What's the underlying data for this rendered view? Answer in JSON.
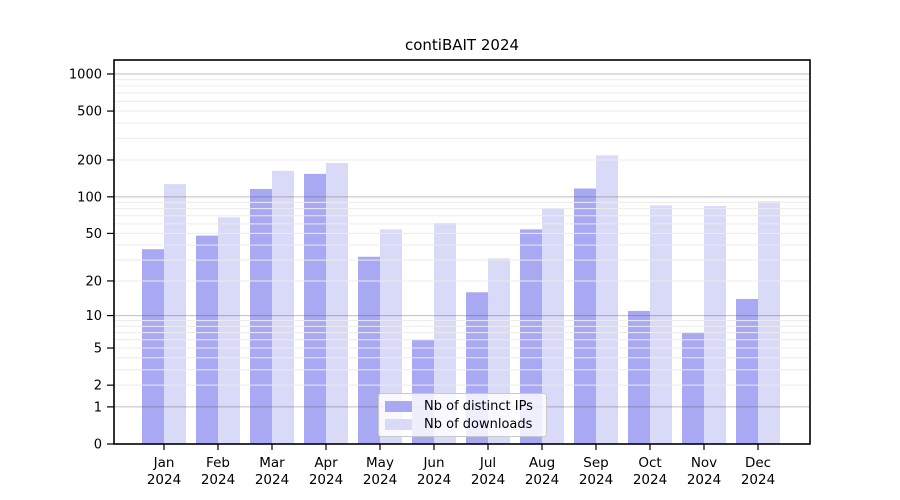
{
  "chart_data": {
    "type": "bar",
    "title": "contiBAIT 2024",
    "categories": [
      "Jan",
      "Feb",
      "Mar",
      "Apr",
      "May",
      "Jun",
      "Jul",
      "Aug",
      "Sep",
      "Oct",
      "Nov",
      "Dec"
    ],
    "year_label": "2024",
    "series": [
      {
        "name": "Nb of distinct IPs",
        "color": "#a9a9f3",
        "values": [
          37,
          48,
          116,
          154,
          32,
          6,
          16,
          54,
          117,
          11,
          7,
          14
        ]
      },
      {
        "name": "Nb of downloads",
        "color": "#d9d9f8",
        "values": [
          127,
          68,
          163,
          189,
          54,
          61,
          31,
          81,
          218,
          85,
          84,
          92
        ]
      }
    ],
    "xlabel": "",
    "ylabel": "",
    "y_ticks": [
      0,
      1,
      2,
      5,
      10,
      20,
      50,
      100,
      200,
      500,
      1000
    ],
    "y_scale": "log10(1+x)",
    "ylim": [
      0,
      1310
    ],
    "grid": {
      "minor_color": "#ececec",
      "major_color": "#bdbdbd",
      "major_lines_at": [
        1,
        10,
        100,
        1000
      ]
    },
    "legend_position": "lower-center",
    "axis_color": "#000000",
    "background_color": "#ffffff"
  }
}
